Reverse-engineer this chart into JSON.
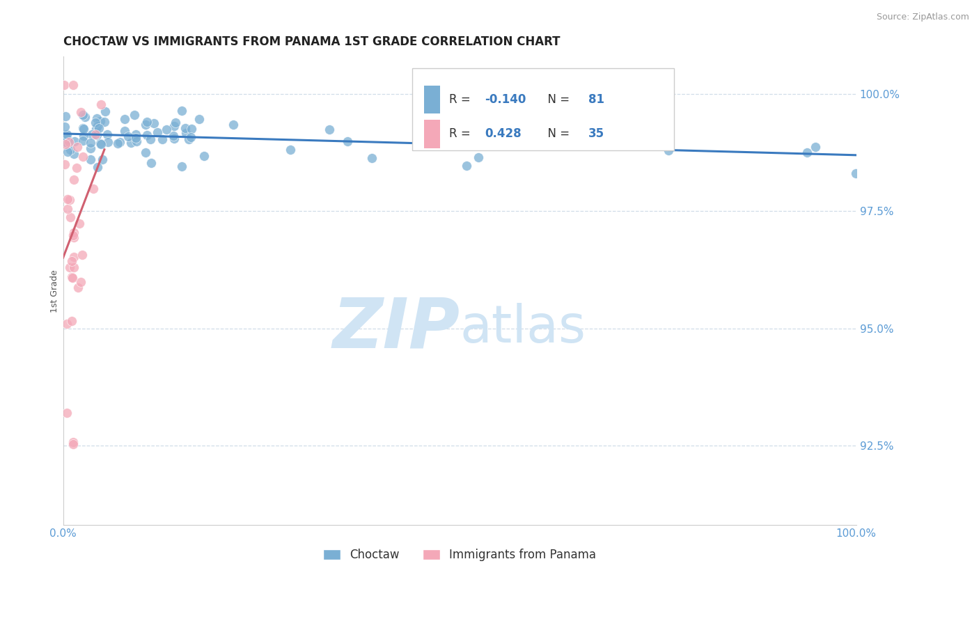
{
  "title": "CHOCTAW VS IMMIGRANTS FROM PANAMA 1ST GRADE CORRELATION CHART",
  "source": "Source: ZipAtlas.com",
  "ylabel": "1st Grade",
  "xlim": [
    0.0,
    1.0
  ],
  "ylim": [
    0.908,
    1.008
  ],
  "yticks": [
    0.925,
    0.95,
    0.975,
    1.0
  ],
  "ytick_labels": [
    "92.5%",
    "95.0%",
    "97.5%",
    "100.0%"
  ],
  "xtick_labels": [
    "0.0%",
    "100.0%"
  ],
  "blue_R": -0.14,
  "blue_N": 81,
  "pink_R": 0.428,
  "pink_N": 35,
  "blue_color": "#7aafd4",
  "pink_color": "#f4a8b8",
  "blue_trend_color": "#3a7abf",
  "pink_trend_color": "#d06070",
  "blue_label": "Choctaw",
  "pink_label": "Immigrants from Panama",
  "title_fontsize": 12,
  "tick_color": "#5b9bd5",
  "grid_color": "#d0dde8",
  "watermark_color": "#d0e4f4",
  "watermark_fontsize": 72,
  "legend_R_color": "#3a7abf",
  "legend_text_color": "#333333"
}
